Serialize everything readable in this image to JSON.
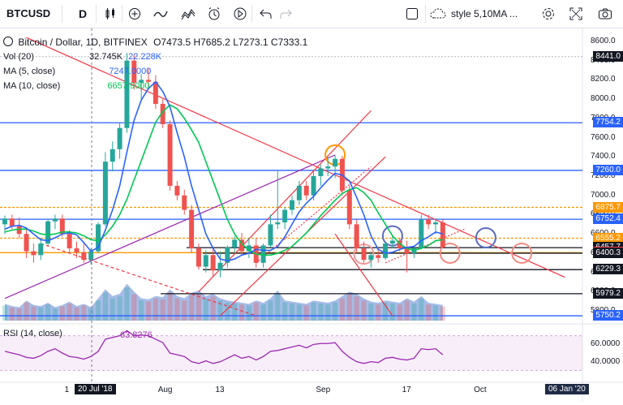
{
  "toolbar": {
    "symbol": "BTCUSD",
    "interval": "D",
    "style_label": "style 5,10MA ..."
  },
  "legend": {
    "title": "Bitcoin / Dollar, 1D, BITFINEX",
    "open": "O7473.5",
    "high": "H7685.2",
    "low": "L7273.1",
    "close": "C7333.1",
    "vol_label": "Vol (20)",
    "vol_value1": "32.745K",
    "vol_value2": "22.228K",
    "ma5_label": "MA (5, close)",
    "ma5_value": "7247.0000",
    "ma10_label": "MA (10, close)",
    "ma10_value": "6657.9000",
    "rsi_label": "RSI (14, close)",
    "rsi_value": "63.8276"
  },
  "price_axis": [
    "8600.0",
    "8400.0",
    "8200.0",
    "8000.0",
    "7800.0",
    "7600.0",
    "7400.0",
    "7200.0",
    "7000.0",
    "6800.0",
    "6600.0",
    "6400.0",
    "6200.0",
    "6000.0",
    "5800.0"
  ],
  "price_badges": [
    {
      "text": "8441.0",
      "color": "#131722"
    },
    {
      "text": "7754.2",
      "color": "#2962ff"
    },
    {
      "text": "7260.0",
      "color": "#2962ff"
    },
    {
      "text": "6875.7",
      "color": "#ff9800"
    },
    {
      "text": "6752.4",
      "color": "#2962ff"
    },
    {
      "text": "6555.2",
      "color": "#ff9800"
    },
    {
      "text": "6457.7",
      "color": "#131722"
    },
    {
      "text": "6405.4",
      "color": "#f23645"
    },
    {
      "text": "6400.3",
      "color": "#131722"
    },
    {
      "text": "6229.3",
      "color": "#131722"
    },
    {
      "text": "5979.2",
      "color": "#131722"
    },
    {
      "text": "5750.2",
      "color": "#2962ff"
    }
  ],
  "rsi_axis": [
    "60.0000",
    "40.0000"
  ],
  "time_axis": [
    "1",
    "Aug",
    "13",
    "Sep",
    "17",
    "Oct"
  ],
  "cursor_date": "20 Jul '18",
  "end_date": "06 Jan '20",
  "chart_data": {
    "type": "candlestick",
    "title": "Bitcoin / Dollar, 1D, BITFINEX",
    "ylim": [
      5700,
      8650
    ],
    "colors": {
      "up": "#26a69a",
      "down": "#ef5350",
      "ma5": "#2962ff",
      "ma10": "#00c853",
      "rsi": "#9c27b0"
    },
    "candles": [
      {
        "o": 6700,
        "h": 6790,
        "l": 6600,
        "c": 6760
      },
      {
        "o": 6760,
        "h": 6800,
        "l": 6650,
        "c": 6680
      },
      {
        "o": 6680,
        "h": 6770,
        "l": 6560,
        "c": 6600
      },
      {
        "o": 6600,
        "h": 6650,
        "l": 6350,
        "c": 6420
      },
      {
        "o": 6420,
        "h": 6500,
        "l": 6300,
        "c": 6380
      },
      {
        "o": 6380,
        "h": 6560,
        "l": 6330,
        "c": 6500
      },
      {
        "o": 6500,
        "h": 6760,
        "l": 6480,
        "c": 6730
      },
      {
        "o": 6730,
        "h": 6800,
        "l": 6650,
        "c": 6760
      },
      {
        "o": 6760,
        "h": 6800,
        "l": 6570,
        "c": 6600
      },
      {
        "o": 6600,
        "h": 6640,
        "l": 6400,
        "c": 6450
      },
      {
        "o": 6450,
        "h": 6520,
        "l": 6350,
        "c": 6410
      },
      {
        "o": 6410,
        "h": 6500,
        "l": 6300,
        "c": 6330
      },
      {
        "o": 6330,
        "h": 6450,
        "l": 6280,
        "c": 6420
      },
      {
        "o": 6420,
        "h": 6720,
        "l": 6400,
        "c": 6700
      },
      {
        "o": 6700,
        "h": 7450,
        "l": 6680,
        "c": 7350
      },
      {
        "o": 7350,
        "h": 7560,
        "l": 7250,
        "c": 7480
      },
      {
        "o": 7480,
        "h": 7750,
        "l": 7380,
        "c": 7700
      },
      {
        "o": 7700,
        "h": 8480,
        "l": 7650,
        "c": 8400
      },
      {
        "o": 8400,
        "h": 8460,
        "l": 8100,
        "c": 8170
      },
      {
        "o": 8170,
        "h": 8260,
        "l": 8000,
        "c": 8200
      },
      {
        "o": 8200,
        "h": 8320,
        "l": 8100,
        "c": 8180
      },
      {
        "o": 8180,
        "h": 8250,
        "l": 7900,
        "c": 7950
      },
      {
        "o": 7950,
        "h": 8000,
        "l": 7700,
        "c": 7740
      },
      {
        "o": 7740,
        "h": 7780,
        "l": 7050,
        "c": 7100
      },
      {
        "o": 7100,
        "h": 7150,
        "l": 6950,
        "c": 7000
      },
      {
        "o": 7000,
        "h": 7060,
        "l": 6800,
        "c": 6850
      },
      {
        "o": 6850,
        "h": 6900,
        "l": 6400,
        "c": 6450
      },
      {
        "o": 6450,
        "h": 6500,
        "l": 6230,
        "c": 6260
      },
      {
        "o": 6260,
        "h": 6430,
        "l": 6200,
        "c": 6380
      },
      {
        "o": 6380,
        "h": 6470,
        "l": 6150,
        "c": 6220
      },
      {
        "o": 6220,
        "h": 6420,
        "l": 6150,
        "c": 6300
      },
      {
        "o": 6300,
        "h": 6480,
        "l": 6250,
        "c": 6460
      },
      {
        "o": 6460,
        "h": 6580,
        "l": 6400,
        "c": 6540
      },
      {
        "o": 6540,
        "h": 6610,
        "l": 6380,
        "c": 6420
      },
      {
        "o": 6420,
        "h": 6560,
        "l": 6350,
        "c": 6480
      },
      {
        "o": 6480,
        "h": 6560,
        "l": 6250,
        "c": 6300
      },
      {
        "o": 6300,
        "h": 6500,
        "l": 6250,
        "c": 6480
      },
      {
        "o": 6480,
        "h": 6800,
        "l": 6460,
        "c": 6700
      },
      {
        "o": 6700,
        "h": 7250,
        "l": 6650,
        "c": 6720
      },
      {
        "o": 6720,
        "h": 6880,
        "l": 6650,
        "c": 6850
      },
      {
        "o": 6850,
        "h": 7000,
        "l": 6800,
        "c": 6950
      },
      {
        "o": 6950,
        "h": 7150,
        "l": 6900,
        "c": 7100
      },
      {
        "o": 7100,
        "h": 7150,
        "l": 6950,
        "c": 7000
      },
      {
        "o": 7000,
        "h": 7250,
        "l": 6950,
        "c": 7200
      },
      {
        "o": 7200,
        "h": 7320,
        "l": 7100,
        "c": 7280
      },
      {
        "o": 7280,
        "h": 7400,
        "l": 7200,
        "c": 7300
      },
      {
        "o": 7300,
        "h": 7420,
        "l": 7180,
        "c": 7380
      },
      {
        "o": 7380,
        "h": 7410,
        "l": 7000,
        "c": 7050
      },
      {
        "o": 7050,
        "h": 7100,
        "l": 6650,
        "c": 6700
      },
      {
        "o": 6700,
        "h": 6750,
        "l": 6400,
        "c": 6450
      },
      {
        "o": 6450,
        "h": 6520,
        "l": 6300,
        "c": 6330
      },
      {
        "o": 6330,
        "h": 6420,
        "l": 6250,
        "c": 6380
      },
      {
        "o": 6380,
        "h": 6450,
        "l": 6300,
        "c": 6350
      },
      {
        "o": 6350,
        "h": 6520,
        "l": 6330,
        "c": 6500
      },
      {
        "o": 6500,
        "h": 6580,
        "l": 6450,
        "c": 6530
      },
      {
        "o": 6530,
        "h": 6560,
        "l": 6420,
        "c": 6450
      },
      {
        "o": 6450,
        "h": 6530,
        "l": 6200,
        "c": 6400
      },
      {
        "o": 6400,
        "h": 6480,
        "l": 6350,
        "c": 6450
      },
      {
        "o": 6450,
        "h": 6800,
        "l": 6440,
        "c": 6750
      },
      {
        "o": 6750,
        "h": 6800,
        "l": 6650,
        "c": 6700
      },
      {
        "o": 6700,
        "h": 6760,
        "l": 6600,
        "c": 6720
      },
      {
        "o": 6720,
        "h": 6750,
        "l": 6450,
        "c": 6460
      }
    ],
    "volume": [
      15,
      13,
      12,
      18,
      14,
      13,
      16,
      12,
      14,
      17,
      13,
      15,
      12,
      20,
      28,
      22,
      24,
      33,
      26,
      20,
      19,
      22,
      21,
      28,
      22,
      20,
      25,
      27,
      22,
      24,
      20,
      18,
      17,
      16,
      15,
      18,
      16,
      20,
      27,
      18,
      17,
      16,
      15,
      18,
      17,
      16,
      18,
      22,
      26,
      24,
      20,
      17,
      16,
      18,
      17,
      16,
      20,
      17,
      22,
      16,
      15,
      14
    ],
    "ma5": [
      6650,
      6680,
      6690,
      6660,
      6600,
      6540,
      6530,
      6560,
      6600,
      6610,
      6590,
      6510,
      6420,
      6460,
      6640,
      6850,
      7100,
      7450,
      7780,
      7990,
      8110,
      8180,
      8080,
      7920,
      7650,
      7400,
      7100,
      6850,
      6600,
      6450,
      6340,
      6320,
      6340,
      6380,
      6400,
      6440,
      6430,
      6430,
      6470,
      6570,
      6700,
      6830,
      6920,
      6990,
      7080,
      7160,
      7230,
      7210,
      7150,
      6980,
      6800,
      6580,
      6440,
      6400,
      6410,
      6440,
      6460,
      6470,
      6530,
      6570,
      6620,
      6600
    ],
    "ma10": [
      6620,
      6640,
      6650,
      6650,
      6630,
      6600,
      6590,
      6600,
      6620,
      6620,
      6610,
      6580,
      6540,
      6530,
      6590,
      6680,
      6800,
      6960,
      7160,
      7360,
      7560,
      7760,
      7870,
      7940,
      7900,
      7800,
      7680,
      7550,
      7350,
      7150,
      6950,
      6750,
      6600,
      6500,
      6430,
      6390,
      6380,
      6380,
      6400,
      6430,
      6470,
      6540,
      6610,
      6700,
      6790,
      6870,
      6950,
      7020,
      7060,
      7080,
      7030,
      6950,
      6820,
      6700,
      6580,
      6500,
      6450,
      6430,
      6450,
      6480,
      6530,
      6540
    ],
    "rsi": [
      52,
      50,
      48,
      45,
      44,
      47,
      52,
      55,
      50,
      46,
      45,
      43,
      46,
      52,
      66,
      68,
      70,
      76,
      70,
      71,
      70,
      66,
      62,
      50,
      48,
      46,
      40,
      38,
      41,
      38,
      40,
      44,
      48,
      44,
      46,
      42,
      46,
      52,
      53,
      55,
      57,
      59,
      56,
      60,
      61,
      61,
      62,
      52,
      45,
      40,
      38,
      40,
      39,
      44,
      45,
      43,
      42,
      44,
      55,
      54,
      55,
      48
    ],
    "horizontal_levels": [
      7754.2,
      7260.0,
      6875.7,
      6752.4,
      6555.2,
      6457.7,
      6405.4,
      6400.3,
      6229.3,
      5979.2,
      5750.2
    ]
  }
}
